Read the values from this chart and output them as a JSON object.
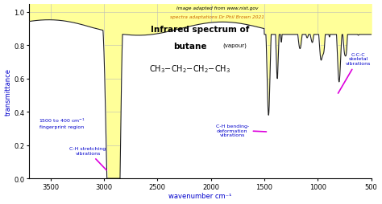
{
  "xlabel": "wavenumber cm⁻¹",
  "ylabel": "transmittance",
  "xlim": [
    500,
    3700
  ],
  "ylim": [
    0.0,
    1.05
  ],
  "background_color": "#ffffff",
  "fill_color": "#ffff99",
  "spectrum_color": "#222222",
  "grid_color": "#bbbbbb",
  "blue": "#0000cc",
  "magenta": "#dd00dd",
  "orange": "#cc6600",
  "attr1": "Image adapted from www.nist.gov",
  "attr2": "spectra adaptations Dr Phil Brown 2021"
}
